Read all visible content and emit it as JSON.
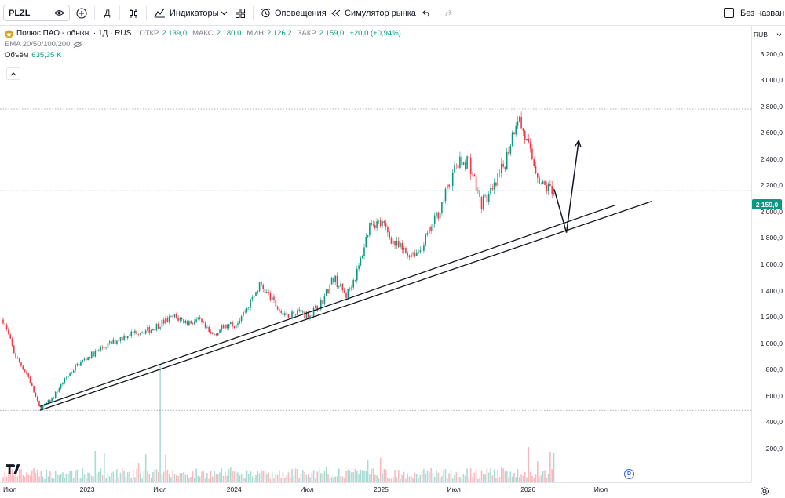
{
  "toolbar": {
    "symbol": "PLZL",
    "interval": "Д",
    "indicators_label": "Индикаторы",
    "alerts_label": "Оповещения",
    "replay_label": "Симулятор рынка",
    "layout_name": "Без названия"
  },
  "legend": {
    "title": "Полюс ПАО - обыкн. · 1Д · RUS",
    "open_label": "ОТКР",
    "open_value": "2 139,0",
    "high_label": "МАКС",
    "high_value": "2 180,0",
    "low_label": "МИН",
    "low_value": "2 126,2",
    "close_label": "ЗАКР",
    "close_value": "2 159,0",
    "change": "+20,0 (+0,94%)",
    "ema_label": "EMA 20/50/100/200",
    "volume_label": "Объём",
    "volume_value": "635,35 K"
  },
  "price_axis": {
    "currency": "RUB",
    "last_price": "2 159,0",
    "ticks": [
      "3 200,0",
      "3 000,0",
      "2 800,0",
      "2 600,0",
      "2 400,0",
      "2 200,0",
      "2 000,0",
      "1 800,0",
      "1 600,0",
      "1 400,0",
      "1 200,0",
      "1 000,0",
      "800,0",
      "600,0",
      "400,0",
      "200,0"
    ]
  },
  "time_axis": {
    "labels": [
      "Июл",
      "2023",
      "Июл",
      "2024",
      "Июл",
      "2025",
      "Июл",
      "2026",
      "Июл"
    ]
  },
  "event_marker": "D",
  "colors": {
    "up": "#089981",
    "down": "#f23645",
    "accent": "#2962ff",
    "text": "#131722",
    "muted": "#787b86"
  },
  "chart_data": {
    "type": "candlestick",
    "interval": "1D",
    "y_range": [
      100,
      3350
    ],
    "reference_levels": [
      2780,
      2159,
      490
    ],
    "close_path": [
      {
        "x": "2022-07",
        "y": 1180
      },
      {
        "x": "2022-08",
        "y": 900
      },
      {
        "x": "2022-09",
        "y": 760
      },
      {
        "x": "2022-10",
        "y": 500
      },
      {
        "x": "2022-11",
        "y": 580
      },
      {
        "x": "2022-12",
        "y": 720
      },
      {
        "x": "2023-01",
        "y": 830
      },
      {
        "x": "2023-02",
        "y": 900
      },
      {
        "x": "2023-03",
        "y": 960
      },
      {
        "x": "2023-04",
        "y": 1010
      },
      {
        "x": "2023-05",
        "y": 1060
      },
      {
        "x": "2023-06",
        "y": 1090
      },
      {
        "x": "2023-07",
        "y": 1100
      },
      {
        "x": "2023-08",
        "y": 1160
      },
      {
        "x": "2023-09",
        "y": 1200
      },
      {
        "x": "2023-10",
        "y": 1160
      },
      {
        "x": "2023-11",
        "y": 1170
      },
      {
        "x": "2023-12",
        "y": 1060
      },
      {
        "x": "2024-01",
        "y": 1120
      },
      {
        "x": "2024-02",
        "y": 1150
      },
      {
        "x": "2024-03",
        "y": 1280
      },
      {
        "x": "2024-04",
        "y": 1450
      },
      {
        "x": "2024-05",
        "y": 1320
      },
      {
        "x": "2024-06",
        "y": 1200
      },
      {
        "x": "2024-07",
        "y": 1250
      },
      {
        "x": "2024-08",
        "y": 1210
      },
      {
        "x": "2024-09",
        "y": 1310
      },
      {
        "x": "2024-10",
        "y": 1500
      },
      {
        "x": "2024-11",
        "y": 1360
      },
      {
        "x": "2024-12",
        "y": 1560
      },
      {
        "x": "2025-01",
        "y": 1930
      },
      {
        "x": "2025-02",
        "y": 1900
      },
      {
        "x": "2025-03",
        "y": 1750
      },
      {
        "x": "2025-04",
        "y": 1680
      },
      {
        "x": "2025-05",
        "y": 1700
      },
      {
        "x": "2025-06",
        "y": 1880
      },
      {
        "x": "2025-07",
        "y": 2100
      },
      {
        "x": "2025-08",
        "y": 2350
      },
      {
        "x": "2025-09",
        "y": 2400
      },
      {
        "x": "2025-10",
        "y": 2060
      },
      {
        "x": "2025-11",
        "y": 2150
      },
      {
        "x": "2025-12",
        "y": 2380
      },
      {
        "x": "2026-01",
        "y": 2740
      },
      {
        "x": "2026-02",
        "y": 2450
      },
      {
        "x": "2026-03",
        "y": 2200
      },
      {
        "x": "2026-04",
        "y": 2159
      }
    ],
    "drawings": {
      "trendline_upper": [
        {
          "x": "2022-10",
          "y": 520
        },
        {
          "x": "2026-09",
          "y": 2050
        }
      ],
      "trendline_lower": [
        {
          "x": "2022-10",
          "y": 490
        },
        {
          "x": "2026-12",
          "y": 2080
        }
      ],
      "forecast_path": [
        {
          "x": "2026-04",
          "y": 2170
        },
        {
          "x": "2026-05",
          "y": 1840
        },
        {
          "x": "2026-06",
          "y": 2540
        }
      ]
    }
  }
}
